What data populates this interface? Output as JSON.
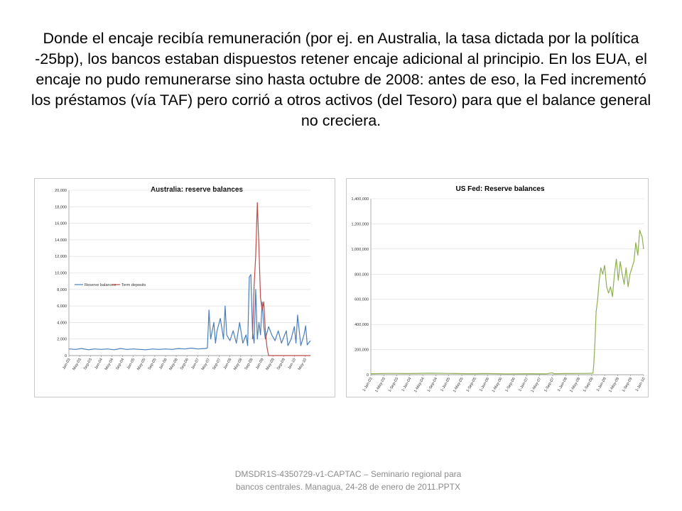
{
  "slide": {
    "title": "Donde el encaje recibía remuneración (por ej. en Australia, la tasa dictada por la política -25bp), los bancos estaban dispuestos  retener  encaje adicional al principio. En los EUA, el encaje no pudo remunerarse sino hasta octubre de 2008: antes de eso, la Fed incrementó los préstamos (vía TAF) pero corrió a otros activos (del Tesoro) para que el balance general no creciera.",
    "footer": "DMSDR1S-4350729-v1-CAPTAC – Seminario regional para bancos centrales. Managua, 24-28 de enero de 2011.PPTX"
  },
  "chart_data": [
    {
      "type": "line",
      "title": "Australia: reserve balances",
      "xlabel": "",
      "ylabel": "",
      "ylim": [
        0,
        20000
      ],
      "y_ticks": [
        "0",
        "2,000",
        "4,000",
        "6,000",
        "8,000",
        "10,000",
        "12,000",
        "14,000",
        "16,000",
        "18,000",
        "20,000"
      ],
      "x_range": [
        2003.0,
        2010.5
      ],
      "x_ticks": [
        "Jan-03",
        "May-03",
        "Sep-03",
        "Jan-04",
        "May-04",
        "Sep-04",
        "Jan-05",
        "May-05",
        "Sep-05",
        "Jan-06",
        "May-06",
        "Sep-06",
        "Jan-07",
        "May-07",
        "Sep-07",
        "Jan-08",
        "May-08",
        "Sep-08",
        "Jan-09",
        "May-09",
        "Sep-09",
        "Jan-10",
        "May-10"
      ],
      "x_tick_values": [
        2003.0,
        2003.333,
        2003.667,
        2004.0,
        2004.333,
        2004.667,
        2005.0,
        2005.333,
        2005.667,
        2006.0,
        2006.333,
        2006.667,
        2007.0,
        2007.333,
        2007.667,
        2008.0,
        2008.333,
        2008.667,
        2009.0,
        2009.333,
        2009.667,
        2010.0,
        2010.333
      ],
      "grid": "horizontal",
      "legend_position": "left-middle",
      "series": [
        {
          "name": "Reserve balances",
          "color": "#4a7ebb",
          "x": [
            2003.0,
            2003.2,
            2003.4,
            2003.6,
            2003.8,
            2004.0,
            2004.2,
            2004.4,
            2004.6,
            2004.8,
            2005.0,
            2005.2,
            2005.4,
            2005.6,
            2005.8,
            2006.0,
            2006.2,
            2006.4,
            2006.6,
            2006.8,
            2007.0,
            2007.2,
            2007.3,
            2007.35,
            2007.4,
            2007.5,
            2007.55,
            2007.6,
            2007.7,
            2007.8,
            2007.85,
            2007.9,
            2008.0,
            2008.1,
            2008.2,
            2008.3,
            2008.4,
            2008.5,
            2008.55,
            2008.6,
            2008.65,
            2008.7,
            2008.75,
            2008.8,
            2008.85,
            2008.9,
            2008.95,
            2009.0,
            2009.05,
            2009.1,
            2009.2,
            2009.3,
            2009.4,
            2009.5,
            2009.6,
            2009.7,
            2009.75,
            2009.8,
            2009.9,
            2010.0,
            2010.05,
            2010.1,
            2010.2,
            2010.3,
            2010.35,
            2010.4,
            2010.5
          ],
          "values": [
            800,
            750,
            850,
            700,
            800,
            750,
            800,
            700,
            850,
            750,
            800,
            750,
            700,
            800,
            750,
            800,
            750,
            850,
            800,
            900,
            800,
            850,
            900,
            5500,
            2000,
            4000,
            1500,
            3000,
            4500,
            2000,
            6000,
            2500,
            1800,
            3000,
            1500,
            4000,
            1500,
            2500,
            1200,
            9500,
            9800,
            3000,
            1500,
            8000,
            2000,
            4000,
            2500,
            6500,
            3500,
            2000,
            3500,
            2500,
            1800,
            3000,
            1500,
            2500,
            3000,
            1200,
            2000,
            3500,
            1500,
            4900,
            1200,
            2500,
            3600,
            1300,
            1800
          ]
        },
        {
          "name": "Term deposits",
          "color": "#be4b48",
          "x": [
            2008.7,
            2008.75,
            2008.8,
            2008.85,
            2008.9,
            2008.95,
            2009.0,
            2009.05,
            2009.1,
            2009.15,
            2009.2,
            2009.3,
            2009.5,
            2009.8,
            2010.0,
            2010.5
          ],
          "values": [
            2000,
            8500,
            12000,
            18500,
            13000,
            7000,
            5500,
            6500,
            3000,
            1000,
            0,
            0,
            0,
            0,
            0,
            0
          ]
        }
      ]
    },
    {
      "type": "line",
      "title": "US Fed: Reserve balances",
      "xlabel": "",
      "ylabel": "",
      "ylim": [
        0,
        1400000
      ],
      "y_ticks": [
        "0",
        "200,000",
        "400,000",
        "600,000",
        "800,000",
        "1,000,000",
        "1,200,000",
        "1,400,000"
      ],
      "x_range": [
        2003.0,
        2010.0
      ],
      "x_ticks": [
        "1-Jan-03",
        "1-May-03",
        "1-Sep-03",
        "1-Jan-04",
        "1-May-04",
        "1-Sep-04",
        "1-Jan-05",
        "1-May-05",
        "1-Sep-05",
        "1-Jan-06",
        "1-May-06",
        "1-Sep-06",
        "1-Jan-07",
        "1-May-07",
        "1-Sep-07",
        "1-Jan-08",
        "1-May-08",
        "1-Sep-08",
        "1-Jan-09",
        "1-May-09",
        "1-Sep-09",
        "1-Jan-10"
      ],
      "x_tick_values": [
        2003.0,
        2003.333,
        2003.667,
        2004.0,
        2004.333,
        2004.667,
        2005.0,
        2005.333,
        2005.667,
        2006.0,
        2006.333,
        2006.667,
        2007.0,
        2007.333,
        2007.667,
        2008.0,
        2008.333,
        2008.667,
        2009.0,
        2009.333,
        2009.667,
        2010.0
      ],
      "grid": "horizontal",
      "series": [
        {
          "name": "",
          "color": "#8cb050",
          "x": [
            2003.0,
            2003.5,
            2004.0,
            2004.5,
            2005.0,
            2005.5,
            2006.0,
            2006.5,
            2007.0,
            2007.5,
            2007.65,
            2007.7,
            2008.0,
            2008.5,
            2008.7,
            2008.72,
            2008.75,
            2008.78,
            2008.82,
            2008.86,
            2008.9,
            2008.95,
            2009.0,
            2009.05,
            2009.1,
            2009.15,
            2009.2,
            2009.25,
            2009.3,
            2009.35,
            2009.4,
            2009.45,
            2009.5,
            2009.55,
            2009.6,
            2009.65,
            2009.7,
            2009.75,
            2009.8,
            2009.85,
            2009.9,
            2009.93,
            2009.96,
            2010.0
          ],
          "values": [
            8000,
            10000,
            9000,
            12000,
            10000,
            8000,
            9000,
            7000,
            8000,
            7000,
            15000,
            8000,
            9000,
            10000,
            12000,
            80000,
            250000,
            500000,
            600000,
            750000,
            850000,
            800000,
            870000,
            700000,
            650000,
            700000,
            620000,
            800000,
            920000,
            750000,
            900000,
            800000,
            720000,
            850000,
            700000,
            800000,
            850000,
            900000,
            1050000,
            950000,
            1150000,
            1120000,
            1100000,
            1000000
          ]
        }
      ]
    }
  ]
}
